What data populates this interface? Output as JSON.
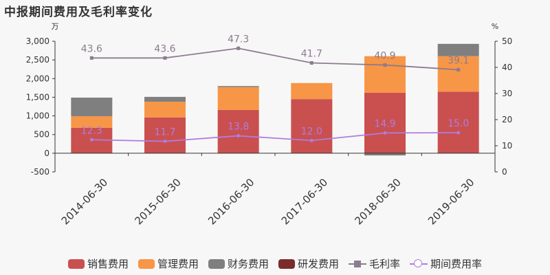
{
  "title": "中报期间费用及毛利率变化",
  "chart_data": {
    "type": "bar+line",
    "categories": [
      "2014-06-30",
      "2015-06-30",
      "2016-06-30",
      "2017-06-30",
      "2018-06-30",
      "2019-06-30"
    ],
    "left_axis": {
      "unit": "万",
      "min": -500,
      "max": 3000,
      "ticks": [
        -500,
        0,
        500,
        1000,
        1500,
        2000,
        2500,
        3000
      ],
      "tick_labels": [
        "-500",
        "0",
        "500",
        "1,000",
        "1,500",
        "2,000",
        "2,500",
        "3,000"
      ]
    },
    "right_axis": {
      "unit": "%",
      "min": 0,
      "max": 50,
      "ticks": [
        0,
        10,
        20,
        30,
        40,
        50
      ],
      "tick_labels": [
        "0",
        "10",
        "20",
        "30",
        "40",
        "50"
      ]
    },
    "bar_series": [
      {
        "name": "销售费用",
        "color": "#c9504f",
        "values": [
          680,
          960,
          1160,
          1450,
          1620,
          1650
        ]
      },
      {
        "name": "管理费用",
        "color": "#f79646",
        "values": [
          310,
          420,
          610,
          430,
          980,
          950
        ]
      },
      {
        "name": "财务费用",
        "color": "#7f7f7f",
        "values": [
          500,
          130,
          30,
          0,
          -60,
          330
        ]
      },
      {
        "name": "研发费用",
        "color": "#7b2c2c",
        "values": [
          0,
          0,
          0,
          0,
          0,
          0
        ]
      }
    ],
    "line_series": [
      {
        "name": "毛利率",
        "color": "#8c7b8e",
        "marker": "square",
        "values": [
          43.6,
          43.6,
          47.3,
          41.7,
          40.9,
          39.1
        ],
        "labels": [
          "43.6",
          "43.6",
          "47.3",
          "41.7",
          "40.9",
          "39.1"
        ]
      },
      {
        "name": "期间费用率",
        "color": "#b07ce0",
        "marker": "circle",
        "values": [
          12.3,
          11.7,
          13.8,
          12.0,
          14.9,
          15.0
        ],
        "labels": [
          "12.3",
          "11.7",
          "13.8",
          "12.0",
          "14.9",
          "15.0"
        ]
      }
    ],
    "grid": false,
    "legend_position": "bottom"
  }
}
